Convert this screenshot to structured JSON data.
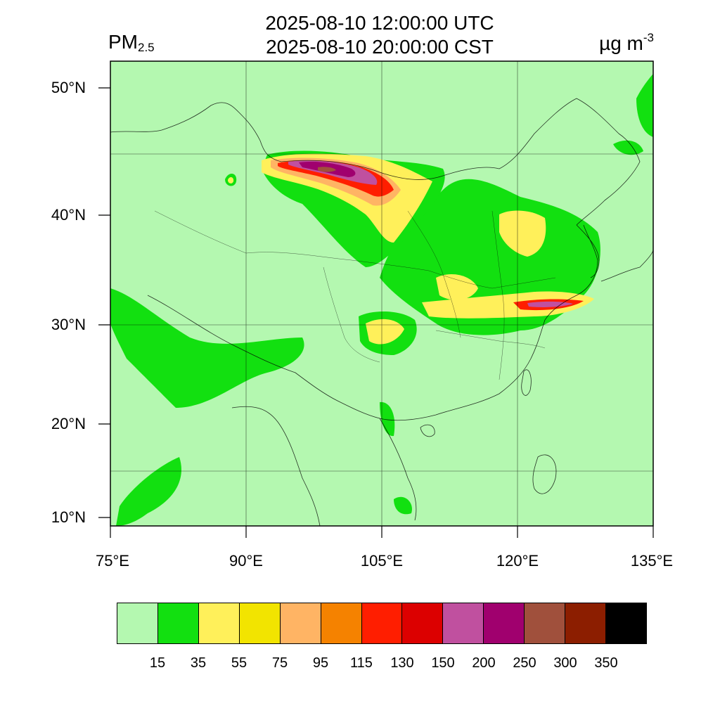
{
  "title": {
    "utc": "2025-08-10 12:00:00 UTC",
    "cst": "2025-08-10 20:00:00 CST",
    "variable_main": "PM",
    "variable_sub": "2.5",
    "unit_main": "µg m",
    "unit_sup": "-3"
  },
  "axes": {
    "lat_labels": [
      "50°N",
      "40°N",
      "30°N",
      "20°N",
      "10°N"
    ],
    "lon_labels": [
      "75°E",
      "90°E",
      "105°E",
      "120°E",
      "135°E"
    ]
  },
  "legend": {
    "labels": [
      "15",
      "35",
      "55",
      "75",
      "95",
      "115",
      "130",
      "150",
      "200",
      "250",
      "300",
      "350"
    ],
    "colors": [
      "#b4f8b0",
      "#12e010",
      "#fff05a",
      "#f2e400",
      "#ffb464",
      "#f58200",
      "#ff1e00",
      "#dc0000",
      "#c0509f",
      "#a0006e",
      "#a0503c",
      "#8c1e00",
      "#000000"
    ]
  },
  "map": {
    "background_color": "#b4f8b0",
    "lon_range": [
      75,
      135
    ],
    "lat_range": [
      9,
      52
    ],
    "hotspots": [
      "Northwestern Inner Mongolia / Gobi plume (peak 250-350)",
      "Yangtze River Delta / East China Sea plume (peak 150-200)",
      "North China Plain (35-95)",
      "Sichuan Basin (35-75)"
    ]
  }
}
